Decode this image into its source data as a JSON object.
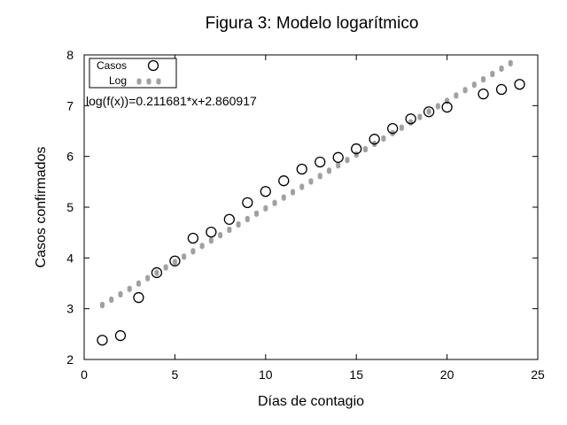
{
  "chart_data": {
    "type": "scatter",
    "title": "Figura 3: Modelo logarítmico",
    "xlabel": "Días de contagio",
    "ylabel": "Casos confirmados",
    "xlim": [
      0,
      25
    ],
    "ylim": [
      2,
      8
    ],
    "xticks": [
      0,
      5,
      10,
      15,
      20,
      25
    ],
    "yticks": [
      2,
      3,
      4,
      5,
      6,
      7,
      8
    ],
    "grid": false,
    "legend_position": "top-left",
    "annotation": "log(f(x))=0.211681*x+2.860917",
    "series": [
      {
        "name": "Casos",
        "marker": "open-circle",
        "color": "#000000",
        "x": [
          1,
          2,
          3,
          4,
          5,
          6,
          7,
          8,
          9,
          10,
          11,
          12,
          13,
          14,
          15,
          16,
          17,
          18,
          19,
          20,
          22,
          23,
          24
        ],
        "y": [
          2.38,
          2.47,
          3.22,
          3.71,
          3.94,
          4.39,
          4.51,
          4.76,
          5.09,
          5.31,
          5.52,
          5.75,
          5.89,
          5.98,
          6.15,
          6.34,
          6.55,
          6.74,
          6.88,
          6.97,
          7.23,
          7.32,
          7.42
        ]
      },
      {
        "name": "Log",
        "marker": "dotted-line",
        "color": "#a0a0a0",
        "slope": 0.211681,
        "intercept": 2.860917,
        "x_range": [
          1,
          23.8
        ]
      }
    ]
  }
}
